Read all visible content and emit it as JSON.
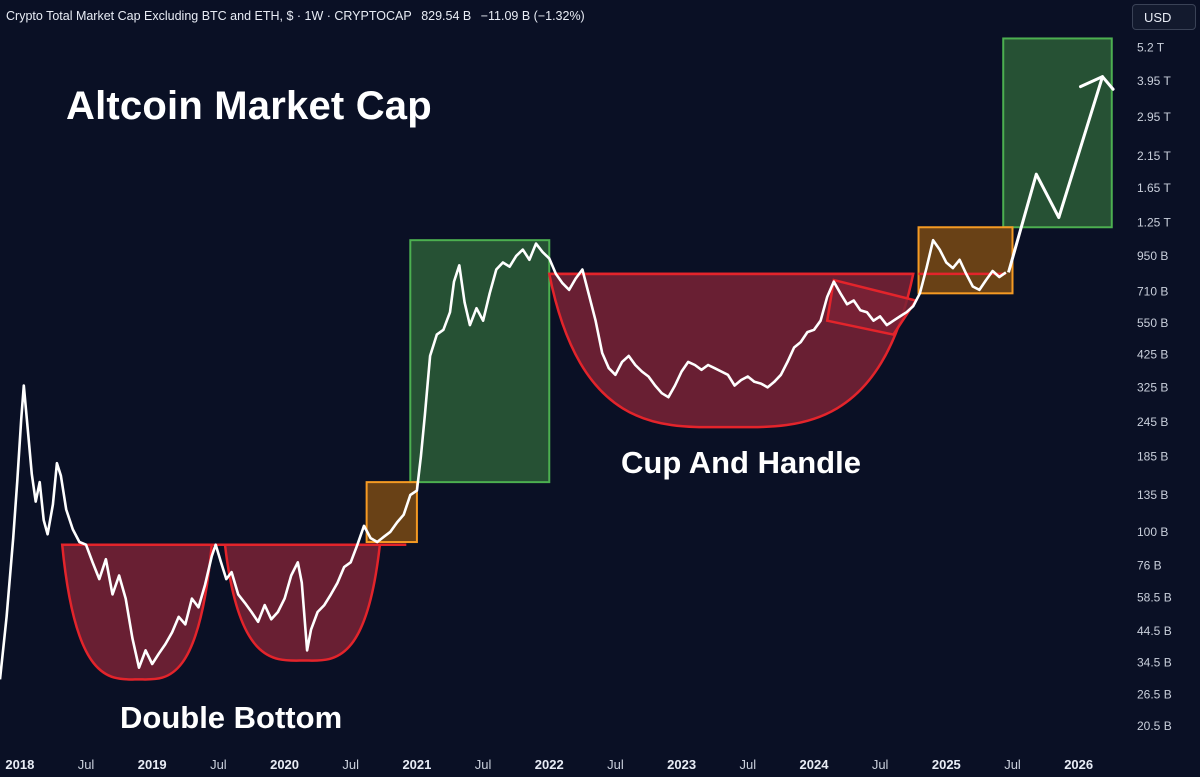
{
  "header": {
    "symbol": "Crypto Total Market Cap Excluding BTC and ETH, $ · 1W · CRYPTOCAP",
    "price": "829.54 B",
    "change": "−11.09 B (−1.32%)"
  },
  "currency_button": "USD",
  "colors": {
    "background": "#0a1025",
    "price_line": "#ffffff",
    "pattern_fill": "#7a2236",
    "pattern_stroke": "#e3242b",
    "target_fill": "#2b5d37",
    "target_stroke": "#4caf50",
    "breakout_fill": "#7a4a14",
    "breakout_stroke": "#f59a23",
    "axis_text": "#c9cfdb"
  },
  "chart_data": {
    "type": "line",
    "title": "Altcoin Market Cap",
    "series_name": "Crypto Total Market Cap Excluding BTC and ETH",
    "scale": "log",
    "ylim_billions": [
      18,
      6000
    ],
    "xlim_years": [
      2017.85,
      2026.35
    ],
    "y_ticks": [
      {
        "v": 5200,
        "label": "5.2 T"
      },
      {
        "v": 3950,
        "label": "3.95 T"
      },
      {
        "v": 2950,
        "label": "2.95 T"
      },
      {
        "v": 2150,
        "label": "2.15 T"
      },
      {
        "v": 1650,
        "label": "1.65 T"
      },
      {
        "v": 1250,
        "label": "1.25 T"
      },
      {
        "v": 950,
        "label": "950 B"
      },
      {
        "v": 710,
        "label": "710 B"
      },
      {
        "v": 550,
        "label": "550 B"
      },
      {
        "v": 425,
        "label": "425 B"
      },
      {
        "v": 325,
        "label": "325 B"
      },
      {
        "v": 245,
        "label": "245 B"
      },
      {
        "v": 185,
        "label": "185 B"
      },
      {
        "v": 135,
        "label": "135 B"
      },
      {
        "v": 100,
        "label": "100 B"
      },
      {
        "v": 76,
        "label": "76 B"
      },
      {
        "v": 58.5,
        "label": "58.5 B"
      },
      {
        "v": 44.5,
        "label": "44.5 B"
      },
      {
        "v": 34.5,
        "label": "34.5 B"
      },
      {
        "v": 26.5,
        "label": "26.5 B"
      },
      {
        "v": 20.5,
        "label": "20.5 B"
      }
    ],
    "x_ticks": [
      {
        "t": 2018.0,
        "label": "2018",
        "major": true
      },
      {
        "t": 2018.5,
        "label": "Jul",
        "major": false
      },
      {
        "t": 2019.0,
        "label": "2019",
        "major": true
      },
      {
        "t": 2019.5,
        "label": "Jul",
        "major": false
      },
      {
        "t": 2020.0,
        "label": "2020",
        "major": true
      },
      {
        "t": 2020.5,
        "label": "Jul",
        "major": false
      },
      {
        "t": 2021.0,
        "label": "2021",
        "major": true
      },
      {
        "t": 2021.5,
        "label": "Jul",
        "major": false
      },
      {
        "t": 2022.0,
        "label": "2022",
        "major": true
      },
      {
        "t": 2022.5,
        "label": "Jul",
        "major": false
      },
      {
        "t": 2023.0,
        "label": "2023",
        "major": true
      },
      {
        "t": 2023.5,
        "label": "Jul",
        "major": false
      },
      {
        "t": 2024.0,
        "label": "2024",
        "major": true
      },
      {
        "t": 2024.5,
        "label": "Jul",
        "major": false
      },
      {
        "t": 2025.0,
        "label": "2025",
        "major": true
      },
      {
        "t": 2025.5,
        "label": "Jul",
        "major": false
      },
      {
        "t": 2026.0,
        "label": "2026",
        "major": true
      }
    ],
    "price_series": [
      [
        2017.85,
        30
      ],
      [
        2017.9,
        50
      ],
      [
        2017.95,
        95
      ],
      [
        2017.98,
        150
      ],
      [
        2018.01,
        250
      ],
      [
        2018.03,
        330
      ],
      [
        2018.06,
        230
      ],
      [
        2018.09,
        160
      ],
      [
        2018.12,
        128
      ],
      [
        2018.15,
        150
      ],
      [
        2018.18,
        110
      ],
      [
        2018.21,
        98
      ],
      [
        2018.25,
        125
      ],
      [
        2018.28,
        175
      ],
      [
        2018.31,
        158
      ],
      [
        2018.35,
        120
      ],
      [
        2018.4,
        102
      ],
      [
        2018.45,
        92
      ],
      [
        2018.5,
        90
      ],
      [
        2018.55,
        78
      ],
      [
        2018.6,
        68
      ],
      [
        2018.65,
        80
      ],
      [
        2018.7,
        60
      ],
      [
        2018.75,
        70
      ],
      [
        2018.8,
        58
      ],
      [
        2018.85,
        42
      ],
      [
        2018.9,
        33
      ],
      [
        2018.95,
        38
      ],
      [
        2019.0,
        34
      ],
      [
        2019.05,
        37
      ],
      [
        2019.1,
        40
      ],
      [
        2019.15,
        44
      ],
      [
        2019.2,
        50
      ],
      [
        2019.25,
        47
      ],
      [
        2019.3,
        58
      ],
      [
        2019.35,
        54
      ],
      [
        2019.4,
        65
      ],
      [
        2019.45,
        82
      ],
      [
        2019.48,
        90
      ],
      [
        2019.52,
        78
      ],
      [
        2019.56,
        68
      ],
      [
        2019.6,
        72
      ],
      [
        2019.65,
        60
      ],
      [
        2019.7,
        56
      ],
      [
        2019.75,
        52
      ],
      [
        2019.8,
        48
      ],
      [
        2019.85,
        55
      ],
      [
        2019.9,
        49
      ],
      [
        2019.95,
        52
      ],
      [
        2020.0,
        58
      ],
      [
        2020.05,
        70
      ],
      [
        2020.1,
        78
      ],
      [
        2020.13,
        66
      ],
      [
        2020.17,
        38
      ],
      [
        2020.2,
        45
      ],
      [
        2020.25,
        52
      ],
      [
        2020.3,
        55
      ],
      [
        2020.35,
        60
      ],
      [
        2020.4,
        66
      ],
      [
        2020.45,
        75
      ],
      [
        2020.5,
        78
      ],
      [
        2020.55,
        90
      ],
      [
        2020.6,
        105
      ],
      [
        2020.65,
        95
      ],
      [
        2020.7,
        92
      ],
      [
        2020.75,
        96
      ],
      [
        2020.8,
        100
      ],
      [
        2020.85,
        108
      ],
      [
        2020.9,
        115
      ],
      [
        2020.95,
        135
      ],
      [
        2021.0,
        140
      ],
      [
        2021.03,
        185
      ],
      [
        2021.06,
        260
      ],
      [
        2021.1,
        420
      ],
      [
        2021.15,
        500
      ],
      [
        2021.2,
        520
      ],
      [
        2021.25,
        600
      ],
      [
        2021.28,
        770
      ],
      [
        2021.32,
        880
      ],
      [
        2021.36,
        650
      ],
      [
        2021.4,
        540
      ],
      [
        2021.45,
        620
      ],
      [
        2021.5,
        560
      ],
      [
        2021.55,
        700
      ],
      [
        2021.6,
        850
      ],
      [
        2021.65,
        900
      ],
      [
        2021.7,
        870
      ],
      [
        2021.75,
        950
      ],
      [
        2021.8,
        1000
      ],
      [
        2021.85,
        920
      ],
      [
        2021.9,
        1050
      ],
      [
        2021.95,
        980
      ],
      [
        2022.0,
        930
      ],
      [
        2022.05,
        820
      ],
      [
        2022.1,
        760
      ],
      [
        2022.15,
        720
      ],
      [
        2022.2,
        790
      ],
      [
        2022.25,
        850
      ],
      [
        2022.3,
        690
      ],
      [
        2022.35,
        560
      ],
      [
        2022.4,
        430
      ],
      [
        2022.45,
        380
      ],
      [
        2022.5,
        360
      ],
      [
        2022.55,
        400
      ],
      [
        2022.6,
        420
      ],
      [
        2022.65,
        390
      ],
      [
        2022.7,
        370
      ],
      [
        2022.75,
        355
      ],
      [
        2022.8,
        330
      ],
      [
        2022.85,
        310
      ],
      [
        2022.9,
        300
      ],
      [
        2022.95,
        330
      ],
      [
        2023.0,
        370
      ],
      [
        2023.05,
        400
      ],
      [
        2023.1,
        390
      ],
      [
        2023.15,
        375
      ],
      [
        2023.2,
        390
      ],
      [
        2023.25,
        380
      ],
      [
        2023.3,
        370
      ],
      [
        2023.35,
        360
      ],
      [
        2023.4,
        330
      ],
      [
        2023.45,
        345
      ],
      [
        2023.5,
        355
      ],
      [
        2023.55,
        340
      ],
      [
        2023.6,
        335
      ],
      [
        2023.65,
        325
      ],
      [
        2023.7,
        340
      ],
      [
        2023.75,
        360
      ],
      [
        2023.8,
        400
      ],
      [
        2023.85,
        450
      ],
      [
        2023.9,
        470
      ],
      [
        2023.95,
        510
      ],
      [
        2024.0,
        520
      ],
      [
        2024.05,
        560
      ],
      [
        2024.1,
        680
      ],
      [
        2024.15,
        770
      ],
      [
        2024.2,
        700
      ],
      [
        2024.25,
        640
      ],
      [
        2024.3,
        660
      ],
      [
        2024.35,
        610
      ],
      [
        2024.4,
        600
      ],
      [
        2024.45,
        560
      ],
      [
        2024.5,
        580
      ],
      [
        2024.55,
        540
      ],
      [
        2024.6,
        560
      ],
      [
        2024.65,
        580
      ],
      [
        2024.7,
        600
      ],
      [
        2024.75,
        630
      ],
      [
        2024.8,
        700
      ],
      [
        2024.85,
        860
      ],
      [
        2024.9,
        1080
      ],
      [
        2024.95,
        1000
      ],
      [
        2025.0,
        900
      ],
      [
        2025.05,
        860
      ],
      [
        2025.1,
        920
      ],
      [
        2025.15,
        820
      ],
      [
        2025.2,
        740
      ],
      [
        2025.25,
        720
      ],
      [
        2025.3,
        780
      ],
      [
        2025.35,
        840
      ],
      [
        2025.4,
        800
      ],
      [
        2025.45,
        830
      ]
    ],
    "projection": [
      [
        2025.47,
        830
      ],
      [
        2025.68,
        1850
      ],
      [
        2025.85,
        1300
      ],
      [
        2026.18,
        4100
      ],
      [
        2026.26,
        3700
      ]
    ],
    "pattern_shapes": {
      "double_bottom": {
        "neckline": [
          [
            2018.32,
            90
          ],
          [
            2020.92,
            90
          ]
        ],
        "trough_1": {
          "start": 2018.32,
          "end": 2019.45,
          "bottom_t": 2018.9,
          "bottom_v": 30
        },
        "trough_2": {
          "start": 2019.55,
          "end": 2020.72,
          "bottom_t": 2020.15,
          "bottom_v": 35
        }
      },
      "cup": {
        "start": 2022.0,
        "end": 2024.75,
        "rim_v": 820,
        "bottom_t": 2023.35,
        "bottom_v": 235
      },
      "handle": [
        [
          2024.15,
          780
        ],
        [
          2024.77,
          660
        ],
        [
          2024.6,
          500
        ],
        [
          2024.1,
          560
        ]
      ],
      "breakout_boxes": [
        {
          "t0": 2020.62,
          "t1": 2021.0,
          "v0": 92,
          "v1": 150
        },
        {
          "t0": 2024.79,
          "t1": 2025.5,
          "v0": 700,
          "v1": 1200
        }
      ],
      "target_boxes": [
        {
          "t0": 2020.95,
          "t1": 2022.0,
          "v0": 150,
          "v1": 1080
        },
        {
          "t0": 2025.43,
          "t1": 2026.25,
          "v0": 1200,
          "v1": 5600
        }
      ],
      "handle_top_line": [
        [
          2024.79,
          820
        ],
        [
          2025.45,
          820
        ]
      ]
    },
    "annotations": {
      "double_bottom": "Double Bottom",
      "cup_and_handle": "Cup And Handle"
    }
  }
}
